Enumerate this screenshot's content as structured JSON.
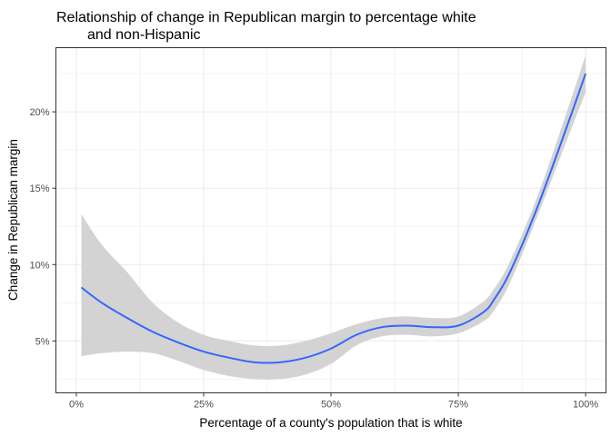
{
  "chart_data": {
    "type": "line",
    "title_lines": [
      "Relationship of change in Republican margin to percentage white",
      "and non-Hispanic"
    ],
    "xlabel": "Percentage of a county's population that is white",
    "ylabel": "Change in Republican margin",
    "xlim": [
      -4,
      104
    ],
    "ylim": [
      1.6,
      24.2
    ],
    "x_ticks": [
      {
        "value": 0,
        "label": "0%"
      },
      {
        "value": 25,
        "label": "25%"
      },
      {
        "value": 50,
        "label": "50%"
      },
      {
        "value": 75,
        "label": "75%"
      },
      {
        "value": 100,
        "label": "100%"
      }
    ],
    "y_ticks": [
      {
        "value": 5,
        "label": "5%"
      },
      {
        "value": 10,
        "label": "10%"
      },
      {
        "value": 15,
        "label": "15%"
      },
      {
        "value": 20,
        "label": "20%"
      }
    ],
    "grid": true,
    "colors": {
      "line": "#3366FF",
      "band": "#d3d3d3",
      "grid": "#ebebeb",
      "border": "#333333"
    },
    "series": [
      {
        "x": [
          1,
          5,
          10,
          15,
          20,
          25,
          30,
          35,
          40,
          45,
          50,
          55,
          60,
          65,
          70,
          75,
          80,
          82,
          85,
          90,
          95,
          100
        ],
        "y": [
          8.5,
          7.5,
          6.5,
          5.6,
          4.9,
          4.3,
          3.9,
          3.6,
          3.6,
          3.9,
          4.5,
          5.4,
          5.9,
          6.0,
          5.9,
          6.0,
          6.9,
          7.7,
          9.4,
          13.3,
          17.8,
          22.5
        ],
        "lower": [
          4.0,
          4.2,
          4.3,
          4.2,
          3.7,
          3.1,
          2.7,
          2.5,
          2.5,
          2.8,
          3.5,
          4.7,
          5.3,
          5.4,
          5.3,
          5.5,
          6.3,
          7.0,
          8.7,
          12.7,
          17.0,
          21.3
        ],
        "upper": [
          13.3,
          11.3,
          9.5,
          7.5,
          6.2,
          5.4,
          5.0,
          4.7,
          4.7,
          5.0,
          5.5,
          6.1,
          6.5,
          6.6,
          6.5,
          6.6,
          7.6,
          8.4,
          10.1,
          14.0,
          18.7,
          23.7
        ]
      }
    ]
  }
}
